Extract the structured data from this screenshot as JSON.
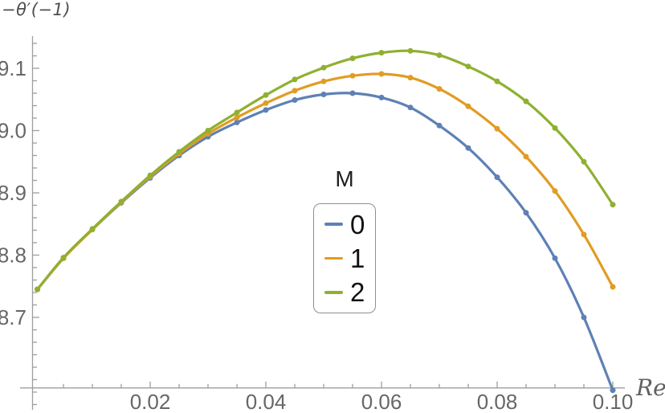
{
  "chart_data": {
    "type": "line",
    "title": "",
    "y_axis_title": "−θ′(−1)",
    "x_axis_label": "Re",
    "legend": {
      "title": "M",
      "position": "inside-center",
      "items": [
        {
          "label": "0",
          "color": "#5e81b5"
        },
        {
          "label": "1",
          "color": "#e19c24"
        },
        {
          "label": "2",
          "color": "#8fb031"
        }
      ]
    },
    "x": [
      0.0005,
      0.005,
      0.01,
      0.015,
      0.02,
      0.025,
      0.03,
      0.035,
      0.04,
      0.045,
      0.05,
      0.055,
      0.06,
      0.065,
      0.07,
      0.075,
      0.08,
      0.085,
      0.09,
      0.095,
      0.1
    ],
    "series": [
      {
        "name": "0",
        "color": "#5e81b5",
        "values": [
          8.745,
          8.795,
          8.841,
          8.884,
          8.924,
          8.96,
          8.99,
          9.013,
          9.033,
          9.049,
          9.058,
          9.06,
          9.053,
          9.037,
          9.008,
          8.972,
          8.925,
          8.868,
          8.795,
          8.7,
          8.583
        ]
      },
      {
        "name": "1",
        "color": "#e19c24",
        "values": [
          8.745,
          8.795,
          8.841,
          8.885,
          8.926,
          8.963,
          8.995,
          9.021,
          9.044,
          9.064,
          9.079,
          9.088,
          9.091,
          9.085,
          9.067,
          9.039,
          9.003,
          8.958,
          8.903,
          8.833,
          8.749
        ]
      },
      {
        "name": "2",
        "color": "#8fb031",
        "values": [
          8.745,
          8.796,
          8.842,
          8.886,
          8.928,
          8.966,
          9.0,
          9.029,
          9.057,
          9.082,
          9.101,
          9.116,
          9.125,
          9.128,
          9.121,
          9.103,
          9.079,
          9.047,
          9.004,
          8.95,
          8.881
        ]
      }
    ],
    "x_axis": {
      "range": [
        0,
        0.102
      ],
      "major_ticks": [
        0.02,
        0.04,
        0.06,
        0.08,
        0.1
      ],
      "major_labels": [
        "0.02",
        "0.04",
        "0.06",
        "0.08",
        "0.10"
      ],
      "minor_step": 0.005
    },
    "y_axis": {
      "range": [
        8.56,
        9.15
      ],
      "major_ticks": [
        8.7,
        8.8,
        8.9,
        9.0,
        9.1
      ],
      "major_labels": [
        "8.7",
        "8.8",
        "8.9",
        "9.0",
        "9.1"
      ],
      "minor_step": 0.02
    },
    "styles": {
      "axis_color": "#9e9e9e",
      "tick_label_color": "#676767",
      "label_color": "#4e4e4e",
      "legend_border_color": "#8f8f8f",
      "legend_text_color": "#111111",
      "background": "#ffffff",
      "line_width": 3.2,
      "marker_radius": 3.5
    }
  }
}
